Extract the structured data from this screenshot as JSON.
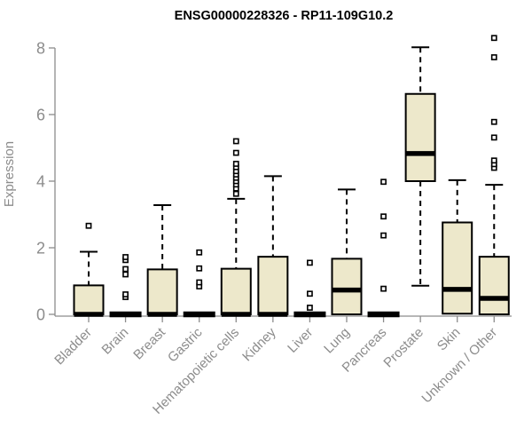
{
  "chart_data": {
    "type": "boxplot",
    "title": "ENSG00000228326 - RP11-109G10.2",
    "xlabel": "",
    "ylabel": "Expression",
    "ylim": [
      0,
      8.4
    ],
    "yticks": [
      0,
      2,
      4,
      6,
      8
    ],
    "grid": false,
    "legend": false,
    "categories": [
      "Bladder",
      "Brain",
      "Breast",
      "Gastric",
      "Hematopoietic cells",
      "Kidney",
      "Liver",
      "Lung",
      "Pancreas",
      "Prostate",
      "Skin",
      "Unknown / Other"
    ],
    "series": [
      {
        "category": "Bladder",
        "q1": 0,
        "median": 0,
        "q3": 0.87,
        "whisker_low": 0,
        "whisker_high": 1.88,
        "outliers": [
          2.66
        ]
      },
      {
        "category": "Brain",
        "q1": 0,
        "median": 0,
        "q3": 0,
        "whisker_low": 0,
        "whisker_high": 0,
        "outliers": [
          0.52,
          0.6,
          1.2,
          1.36,
          1.63,
          1.72
        ]
      },
      {
        "category": "Breast",
        "q1": 0,
        "median": 0,
        "q3": 1.35,
        "whisker_low": 0,
        "whisker_high": 3.28,
        "outliers": []
      },
      {
        "category": "Gastric",
        "q1": 0,
        "median": 0,
        "q3": 0,
        "whisker_low": 0,
        "whisker_high": 0,
        "outliers": [
          0.84,
          0.96,
          1.38,
          1.86
        ]
      },
      {
        "category": "Hematopoietic cells",
        "q1": 0,
        "median": 0,
        "q3": 1.37,
        "whisker_low": 0,
        "whisker_high": 3.47,
        "outliers": [
          3.62,
          3.78,
          3.9,
          4.0,
          4.1,
          4.2,
          4.3,
          4.42,
          4.52,
          4.85,
          5.2
        ]
      },
      {
        "category": "Kidney",
        "q1": 0,
        "median": 0,
        "q3": 1.73,
        "whisker_low": 0,
        "whisker_high": 4.15,
        "outliers": []
      },
      {
        "category": "Liver",
        "q1": 0,
        "median": 0,
        "q3": 0,
        "whisker_low": 0,
        "whisker_high": 0,
        "outliers": [
          0.2,
          0.62,
          1.55
        ]
      },
      {
        "category": "Lung",
        "q1": 0,
        "median": 0.73,
        "q3": 1.67,
        "whisker_low": 0,
        "whisker_high": 3.75,
        "outliers": []
      },
      {
        "category": "Pancreas",
        "q1": 0,
        "median": 0,
        "q3": 0,
        "whisker_low": 0,
        "whisker_high": 0,
        "outliers": [
          0.77,
          2.37,
          2.94,
          3.98
        ]
      },
      {
        "category": "Prostate",
        "q1": 4.0,
        "median": 4.83,
        "q3": 6.62,
        "whisker_low": 0.86,
        "whisker_high": 8.02,
        "outliers": []
      },
      {
        "category": "Skin",
        "q1": 0.02,
        "median": 0.75,
        "q3": 2.76,
        "whisker_low": 0.02,
        "whisker_high": 4.03,
        "outliers": []
      },
      {
        "category": "Unknown / Other",
        "q1": 0,
        "median": 0.48,
        "q3": 1.73,
        "whisker_low": 0,
        "whisker_high": 3.89,
        "outliers": [
          4.4,
          4.51,
          4.62,
          5.31,
          5.78,
          7.72,
          8.3
        ]
      }
    ],
    "colors": {
      "box_fill": "#EDE8CB",
      "box_stroke": "#000000",
      "median": "#000000",
      "whisker": "#000000",
      "outlier_stroke": "#000000",
      "axis": "#8c8c8c",
      "title": "#000000",
      "background": "#ffffff"
    }
  }
}
